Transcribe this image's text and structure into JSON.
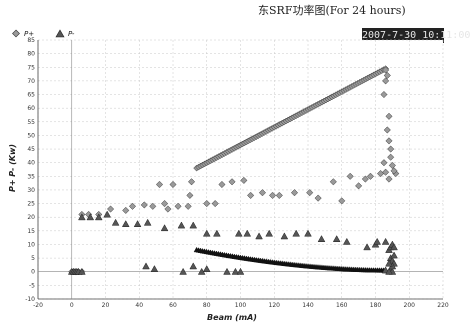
{
  "title": "东SRF功率图(For 24 hours)",
  "timestamp": "2007-7-30 10:11:00",
  "colors": {
    "p_plus": "#9a9a9a",
    "p_minus": "#555555",
    "grid": "#c8c8c8",
    "axis": "#444444"
  },
  "chart_data": {
    "type": "scatter",
    "xlabel": "Beam (mA)",
    "ylabel": "P+ P- (Kw)",
    "xlim": [
      -20,
      220
    ],
    "ylim": [
      -10,
      85
    ],
    "xticks": [
      -20,
      0,
      20,
      40,
      60,
      80,
      100,
      120,
      140,
      160,
      180,
      200,
      220
    ],
    "yticks": [
      -10,
      -5,
      0,
      5,
      10,
      15,
      20,
      25,
      30,
      35,
      40,
      45,
      50,
      55,
      60,
      65,
      70,
      75,
      80,
      85
    ],
    "grid": true,
    "legend_position": "top-left",
    "dense_trends": [
      {
        "series": "P+",
        "x": [
          74,
          186
        ],
        "y": [
          38,
          74.5
        ]
      },
      {
        "series": "P-",
        "x": [
          74,
          186
        ],
        "y": [
          8,
          0.5
        ]
      }
    ],
    "series": [
      {
        "name": "P+",
        "marker": "diamond",
        "points": [
          [
            0,
            0
          ],
          [
            1,
            0
          ],
          [
            2,
            0
          ],
          [
            3,
            0
          ],
          [
            4,
            0
          ],
          [
            6,
            0
          ],
          [
            6,
            21
          ],
          [
            10,
            21
          ],
          [
            16,
            21
          ],
          [
            23,
            23
          ],
          [
            32,
            22.5
          ],
          [
            36,
            24
          ],
          [
            43,
            24.5
          ],
          [
            48,
            24
          ],
          [
            52,
            32
          ],
          [
            55,
            25
          ],
          [
            57,
            23
          ],
          [
            60,
            32
          ],
          [
            63,
            24
          ],
          [
            69,
            24
          ],
          [
            70,
            28
          ],
          [
            71,
            33
          ],
          [
            80,
            25
          ],
          [
            85,
            25
          ],
          [
            89,
            32
          ],
          [
            95,
            33
          ],
          [
            102,
            33.5
          ],
          [
            106,
            28
          ],
          [
            113,
            29
          ],
          [
            119,
            28
          ],
          [
            123,
            28
          ],
          [
            132,
            29
          ],
          [
            141,
            29
          ],
          [
            146,
            27
          ],
          [
            155,
            33
          ],
          [
            160,
            26
          ],
          [
            165,
            35
          ],
          [
            170,
            31.5
          ],
          [
            174,
            34
          ],
          [
            177,
            35
          ],
          [
            183,
            36
          ],
          [
            186,
            36.5
          ],
          [
            185,
            40
          ],
          [
            188,
            34
          ],
          [
            187,
            52
          ],
          [
            188,
            57
          ],
          [
            189,
            45
          ],
          [
            190,
            39
          ],
          [
            186,
            70
          ],
          [
            186,
            74
          ],
          [
            187,
            72
          ],
          [
            185,
            65
          ],
          [
            188,
            48
          ],
          [
            189,
            42
          ],
          [
            192,
            36
          ],
          [
            191,
            37
          ]
        ]
      },
      {
        "name": "P-",
        "marker": "triangle",
        "points": [
          [
            0,
            0
          ],
          [
            1,
            0
          ],
          [
            2,
            0
          ],
          [
            3,
            0
          ],
          [
            4,
            0
          ],
          [
            6,
            0
          ],
          [
            6,
            20
          ],
          [
            11,
            20
          ],
          [
            16,
            20
          ],
          [
            21,
            21
          ],
          [
            26,
            18
          ],
          [
            32,
            17.5
          ],
          [
            39,
            17.5
          ],
          [
            45,
            18
          ],
          [
            55,
            16
          ],
          [
            65,
            17
          ],
          [
            72,
            17
          ],
          [
            44,
            2
          ],
          [
            49,
            1
          ],
          [
            66,
            0
          ],
          [
            72,
            2
          ],
          [
            77,
            0
          ],
          [
            80,
            1
          ],
          [
            92,
            0
          ],
          [
            97,
            0
          ],
          [
            100,
            0
          ],
          [
            80,
            14
          ],
          [
            86,
            14
          ],
          [
            99,
            14
          ],
          [
            104,
            14
          ],
          [
            111,
            13
          ],
          [
            117,
            14
          ],
          [
            126,
            13
          ],
          [
            133,
            14
          ],
          [
            140,
            14
          ],
          [
            148,
            12
          ],
          [
            157,
            12
          ],
          [
            163,
            11
          ],
          [
            175,
            9
          ],
          [
            180,
            10
          ],
          [
            181,
            11
          ],
          [
            186,
            11
          ],
          [
            188,
            8
          ],
          [
            189,
            9
          ],
          [
            190,
            10
          ],
          [
            191,
            9
          ],
          [
            189,
            5
          ],
          [
            190,
            4
          ],
          [
            191,
            3
          ],
          [
            189,
            1
          ],
          [
            190,
            0
          ],
          [
            186,
            0.5
          ],
          [
            188,
            0
          ],
          [
            190,
            2
          ],
          [
            191,
            6
          ],
          [
            188,
            3
          ]
        ]
      }
    ]
  }
}
